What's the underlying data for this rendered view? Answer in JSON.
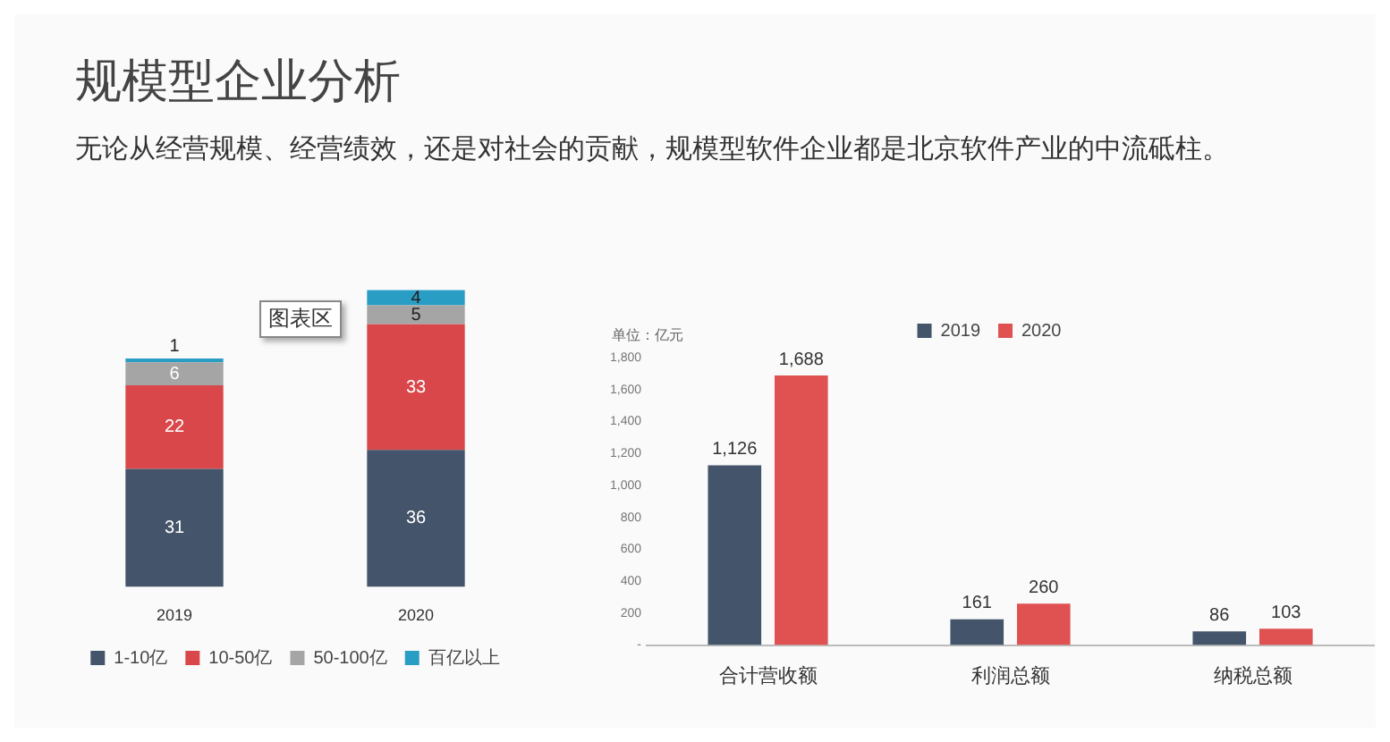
{
  "chart_data": [
    {
      "type": "bar",
      "title": "规模型企业分析",
      "subtitle": "无论从经营规模、经营绩效，还是对社会的贡献，规模型软件企业都是北京软件产业的中流砥柱。",
      "annotations": [
        "图表区"
      ],
      "categories": [
        "2019",
        "2020"
      ],
      "stacked": true,
      "data_labels": true,
      "legend": "bottom",
      "series": [
        {
          "name": "1-10亿",
          "color": "#44546a",
          "values": [
            31,
            36
          ]
        },
        {
          "name": "10-50亿",
          "color": "#d9474a",
          "values": [
            22,
            33
          ]
        },
        {
          "name": "50-100亿",
          "color": "#a5a5a5",
          "values": [
            6,
            5
          ]
        },
        {
          "name": "百亿以上",
          "color": "#2a9dc4",
          "values": [
            1,
            4
          ]
        }
      ]
    },
    {
      "type": "bar",
      "ylabel": "单位：亿元",
      "categories": [
        "合计营收额",
        "利润总额",
        "纳税总额"
      ],
      "ylim": [
        0,
        1800
      ],
      "yticks": [
        {
          "value": 0,
          "label": "-"
        },
        200,
        400,
        600,
        800,
        {
          "value": 1000,
          "label": "1,000"
        },
        {
          "value": 1200,
          "label": "1,200"
        },
        {
          "value": 1400,
          "label": "1,400"
        },
        {
          "value": 1600,
          "label": "1,600"
        },
        {
          "value": 1800,
          "label": "1,800"
        }
      ],
      "legend": "top",
      "series": [
        {
          "name": "2019",
          "color": "#44546a",
          "values": [
            1126,
            161,
            86
          ],
          "value_labels": [
            "1,126",
            "161",
            "86"
          ]
        },
        {
          "name": "2020",
          "color": "#e05252",
          "values": [
            1688,
            260,
            103
          ],
          "value_labels": [
            "1,688",
            "260",
            "103"
          ]
        }
      ]
    }
  ]
}
